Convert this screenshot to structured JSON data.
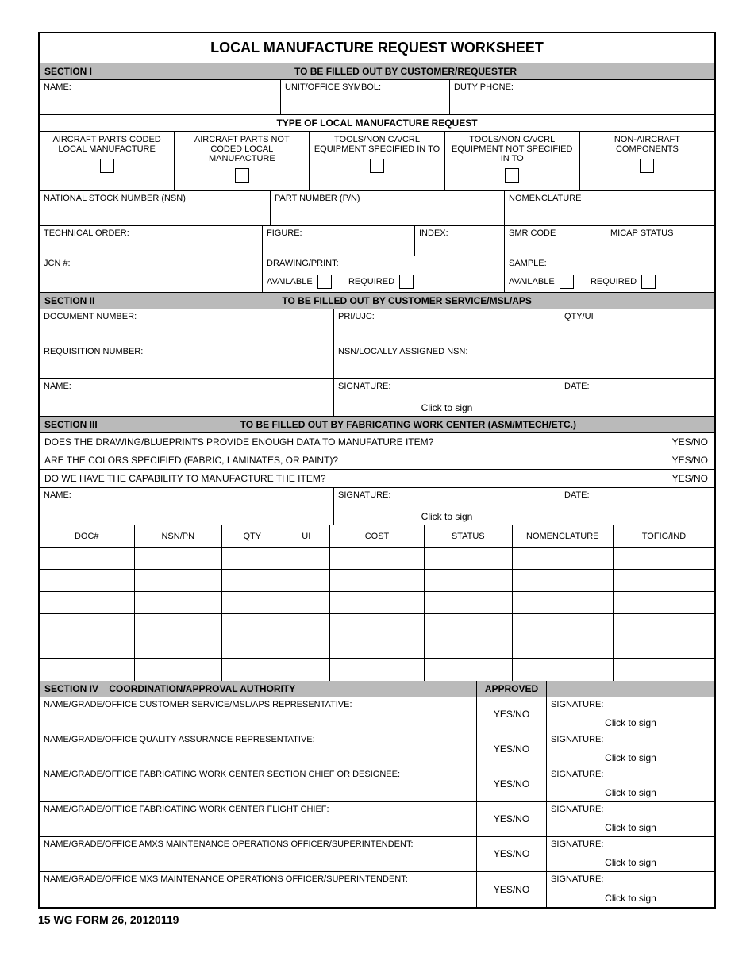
{
  "title": "LOCAL MANUFACTURE REQUEST WORKSHEET",
  "footer": "15 WG FORM 26, 20120119",
  "section1": {
    "label": "SECTION I",
    "sub": "TO BE FILLED OUT BY CUSTOMER/REQUESTER",
    "name": "NAME:",
    "unit": "UNIT/OFFICE SYMBOL:",
    "duty": "DUTY PHONE:",
    "typeHdr": "TYPE OF LOCAL MANUFACTURE REQUEST",
    "cb1": "AIRCRAFT PARTS CODED LOCAL MANUFACTURE",
    "cb2": "AIRCRAFT PARTS NOT CODED LOCAL MANUFACTURE",
    "cb3": "TOOLS/NON CA/CRL EQUIPMENT SPECIFIED IN TO",
    "cb4": "TOOLS/NON CA/CRL EQUIPMENT NOT SPECIFIED IN TO",
    "cb5": "NON-AIRCRAFT COMPONENTS",
    "nsn": "NATIONAL STOCK NUMBER (NSN)",
    "pn": "PART NUMBER (P/N)",
    "nom": "NOMENCLATURE",
    "to": "TECHNICAL ORDER:",
    "fig": "FIGURE:",
    "idx": "INDEX:",
    "smr": "SMR CODE",
    "micap": "MICAP STATUS",
    "jcn": "JCN #:",
    "drawing": "DRAWING/PRINT:",
    "avail": "AVAILABLE",
    "req": "REQUIRED",
    "sample": "SAMPLE:",
    "avail2": "AVAILABLE",
    "req2": "REQUIRED"
  },
  "section2": {
    "label": "SECTION II",
    "sub": "TO BE FILLED OUT BY CUSTOMER SERVICE/MSL/APS",
    "doc": "DOCUMENT NUMBER:",
    "pri": "PRI/UJC:",
    "qty": "QTY/UI",
    "reqno": "REQUISITION NUMBER:",
    "nsnla": "NSN/LOCALLY ASSIGNED NSN:",
    "name": "NAME:",
    "sig": "SIGNATURE:",
    "date": "DATE:",
    "cts": "Click to sign"
  },
  "section3": {
    "label": "SECTION III",
    "sub": "TO BE FILLED OUT BY FABRICATING WORK CENTER (ASM/MTECH/ETC.)",
    "q1": "DOES THE DRAWING/BLUEPRINTS PROVIDE ENOUGH DATA TO MANUFATURE ITEM?",
    "q2": "ARE THE COLORS SPECIFIED (FABRIC, LAMINATES, OR PAINT)?",
    "q3": "DO WE HAVE THE CAPABILITY TO MANUFACTURE THE ITEM?",
    "yn": "YES/NO",
    "name": "NAME:",
    "sig": "SIGNATURE:",
    "date": "DATE:",
    "cts": "Click to sign",
    "cols": [
      "DOC#",
      "NSN/PN",
      "QTY",
      "UI",
      "COST",
      "STATUS",
      "NOMENCLATURE",
      "TOFIG/IND"
    ],
    "rowCount": 6
  },
  "section4": {
    "label": "SECTION IV",
    "sub": "COORDINATION/APPROVAL AUTHORITY",
    "approved": "APPROVED",
    "sig": "SIGNATURE:",
    "cts": "Click to sign",
    "yn": "YES/NO",
    "rows": [
      "NAME/GRADE/OFFICE CUSTOMER SERVICE/MSL/APS REPRESENTATIVE:",
      "NAME/GRADE/OFFICE QUALITY ASSURANCE REPRESENTATIVE:",
      "NAME/GRADE/OFFICE FABRICATING WORK CENTER SECTION CHIEF OR DESIGNEE:",
      "NAME/GRADE/OFFICE FABRICATING WORK CENTER FLIGHT CHIEF:",
      "NAME/GRADE/OFFICE AMXS MAINTENANCE OPERATIONS OFFICER/SUPERINTENDENT:",
      "NAME/GRADE/OFFICE MXS MAINTENANCE OPERATIONS OFFICER/SUPERINTENDENT:"
    ]
  }
}
